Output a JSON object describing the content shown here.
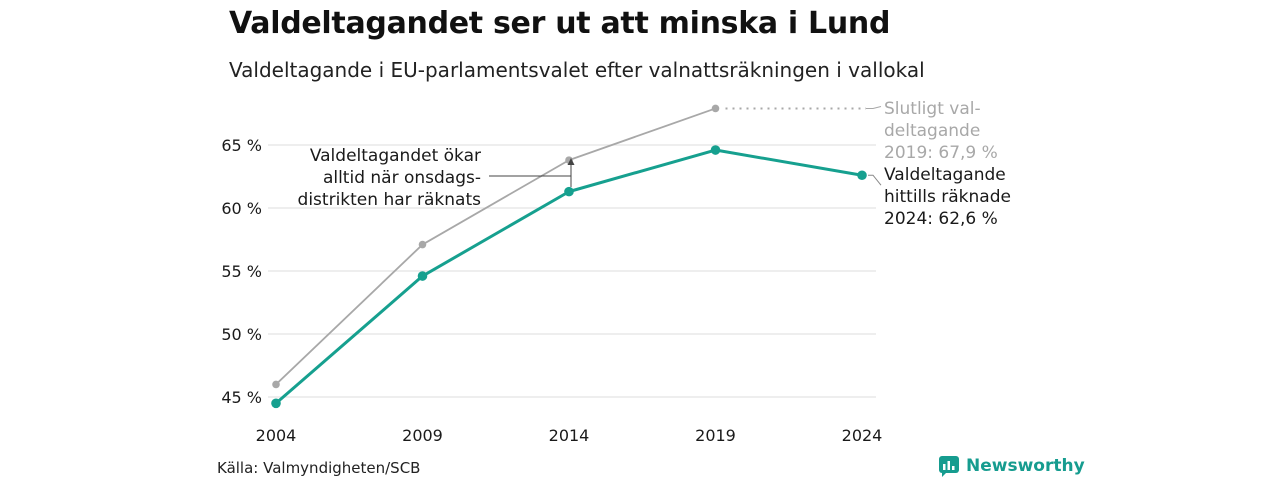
{
  "title": "Valdeltagandet ser ut att minska i Lund",
  "subtitle": "Valdeltagande i EU-parlamentsvalet efter valnattsräkningen i vallokal",
  "source": "Källa: Valmyndigheten/SCB",
  "brand": {
    "name": "Newsworthy",
    "icon": "newsworthy-logo-icon"
  },
  "colors": {
    "final": "#a8a8a8",
    "counted": "#16a08f",
    "grid": "#e4e4e4",
    "text": "#1a1a1a"
  },
  "chart_data": {
    "type": "line",
    "x": [
      2004,
      2009,
      2014,
      2019,
      2024
    ],
    "x_tick_labels": [
      "2004",
      "2009",
      "2014",
      "2019",
      "2024"
    ],
    "y_ticks": [
      45,
      50,
      55,
      60,
      65
    ],
    "y_tick_labels": [
      "45 %",
      "50 %",
      "55 %",
      "60 %",
      "65 %"
    ],
    "ylim": [
      44,
      68
    ],
    "grid": true,
    "series": [
      {
        "key": "final",
        "values": [
          46.0,
          57.1,
          63.8,
          67.9,
          null
        ]
      },
      {
        "key": "counted",
        "values": [
          44.5,
          54.6,
          61.3,
          64.6,
          62.6
        ]
      }
    ],
    "annotations": {
      "final_label": [
        "Slutligt val-",
        "deltagande",
        "2019: 67,9 %"
      ],
      "counted_label": [
        "Valdeltagande",
        "hittills räknade",
        "2024: 62,6 %"
      ],
      "note": [
        "Valdeltagandet ökar",
        "alltid när onsdags-",
        "distrikten har räknats"
      ]
    }
  }
}
